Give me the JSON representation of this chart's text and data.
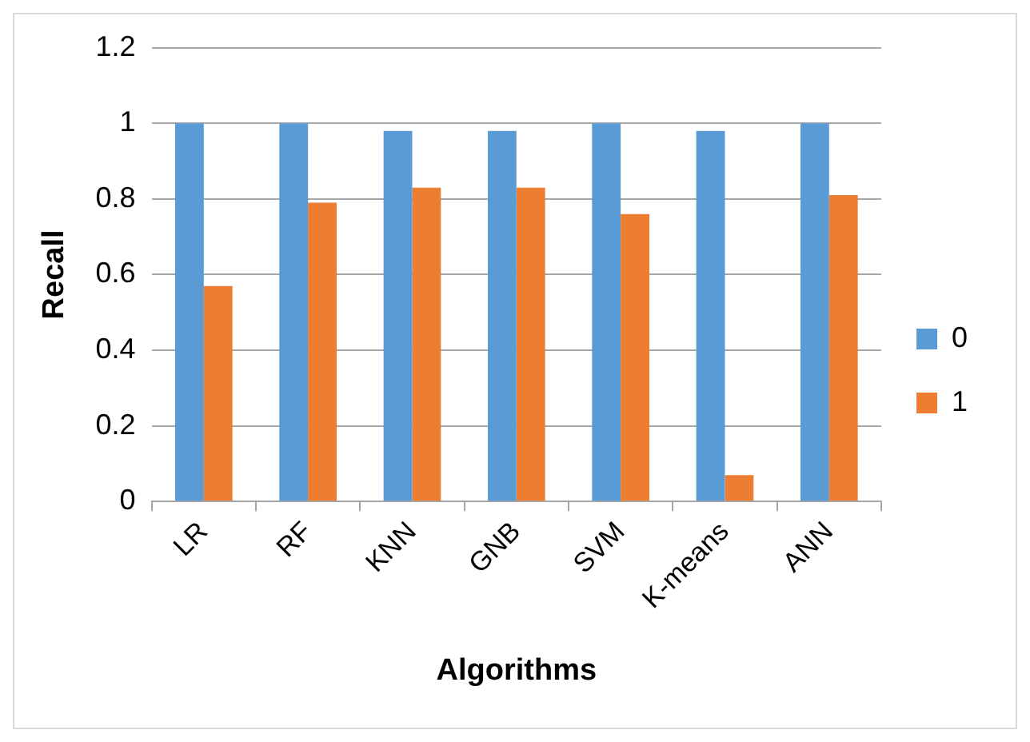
{
  "chart_data": {
    "type": "bar",
    "xlabel": "Algorithms",
    "ylabel": "Recall",
    "categories": [
      "LR",
      "RF",
      "KNN",
      "GNB",
      "SVM",
      "K-means",
      "ANN"
    ],
    "series": [
      {
        "name": "0",
        "color": "#5b9bd5",
        "values": [
          1,
          1,
          0.98,
          0.98,
          1,
          0.98,
          1
        ]
      },
      {
        "name": "1",
        "color": "#ed7d31",
        "values": [
          0.57,
          0.79,
          0.83,
          0.83,
          0.76,
          0.07,
          0.81
        ]
      }
    ],
    "ylim": [
      0,
      1.2
    ],
    "yticks": [
      0,
      0.2,
      0.4,
      0.6,
      0.8,
      1,
      1.2
    ],
    "grid": "y",
    "legend": "right"
  }
}
